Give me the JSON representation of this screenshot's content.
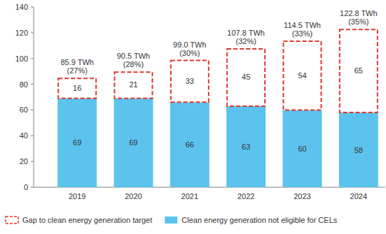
{
  "chart_data": {
    "type": "bar",
    "stacked": true,
    "data_labels": true,
    "grid": false,
    "legend": "bottom",
    "categories": [
      "2019",
      "2020",
      "2021",
      "2022",
      "2023",
      "2024"
    ],
    "series": [
      {
        "name": "Clean energy generation not eligible for CELs",
        "color": "#5bc3ee",
        "values": [
          69,
          69,
          66,
          63,
          60,
          58
        ]
      },
      {
        "name": "Gap to clean energy generation target",
        "color": "#e0372c",
        "line_style": "dashed",
        "values": [
          16,
          21,
          33,
          45,
          54,
          65
        ]
      }
    ],
    "annotations": [
      "85.9 TWh (27%)",
      "90.5 TWh (28%)",
      "99.0 TWh (30%)",
      "107.8 TWh (32%)",
      "114.5 TWh (33%)",
      "122.8 TWh (35%)"
    ],
    "ylim": [
      0,
      140
    ],
    "yticks": [
      0,
      20,
      40,
      60,
      80,
      100,
      120,
      140
    ]
  }
}
